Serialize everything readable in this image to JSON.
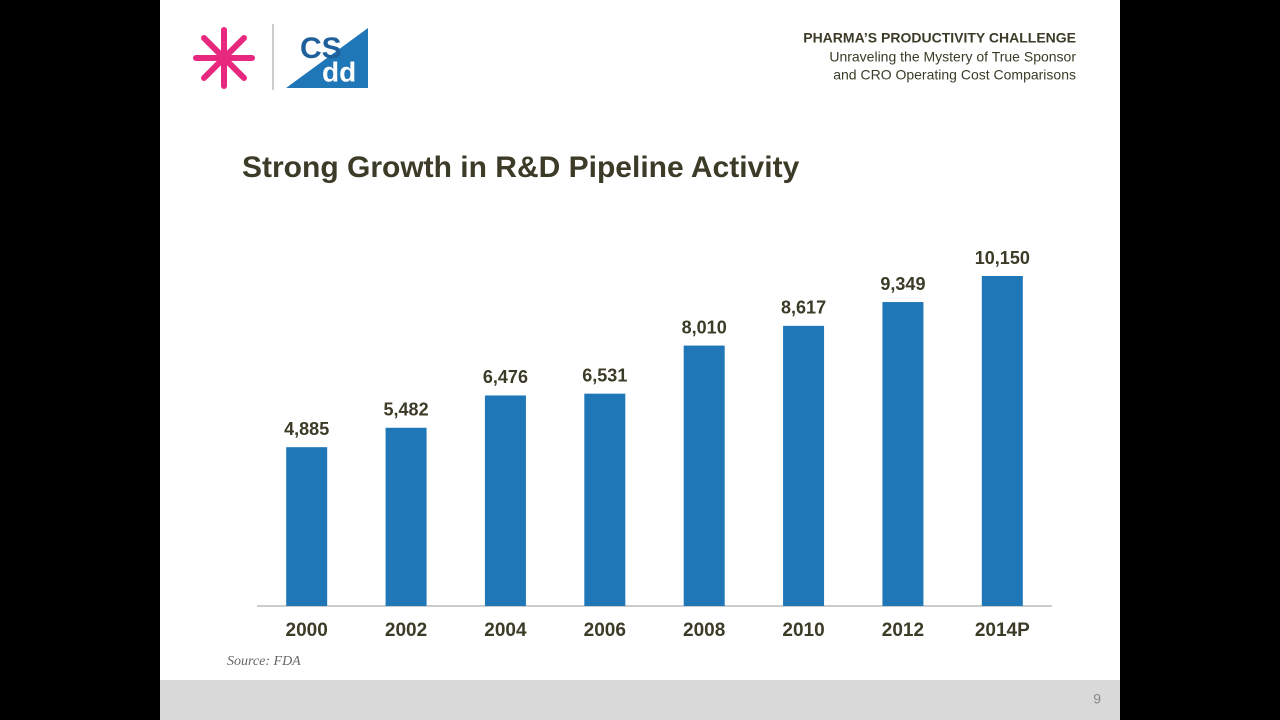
{
  "header": {
    "title": "PHARMA’S PRODUCTIVITY CHALLENGE",
    "subtitle": [
      "Unraveling  the Mystery of True Sponsor",
      "and CRO  Operating  Cost Comparisons"
    ]
  },
  "logo": {
    "text": "CS",
    "text2": "dd"
  },
  "chart_data": {
    "type": "bar",
    "title": "Strong Growth in R&D Pipeline Activity",
    "categories": [
      "2000",
      "2002",
      "2004",
      "2006",
      "2008",
      "2010",
      "2012",
      "2014P"
    ],
    "values": [
      4885,
      5482,
      6476,
      6531,
      8010,
      8617,
      9349,
      10150
    ],
    "value_labels": [
      "4,885",
      "5,482",
      "6,476",
      "6,531",
      "8,010",
      "8,617",
      "9,349",
      "10,150"
    ],
    "color": "#1f77b8",
    "source": "Source: FDA"
  },
  "page_number": "9"
}
